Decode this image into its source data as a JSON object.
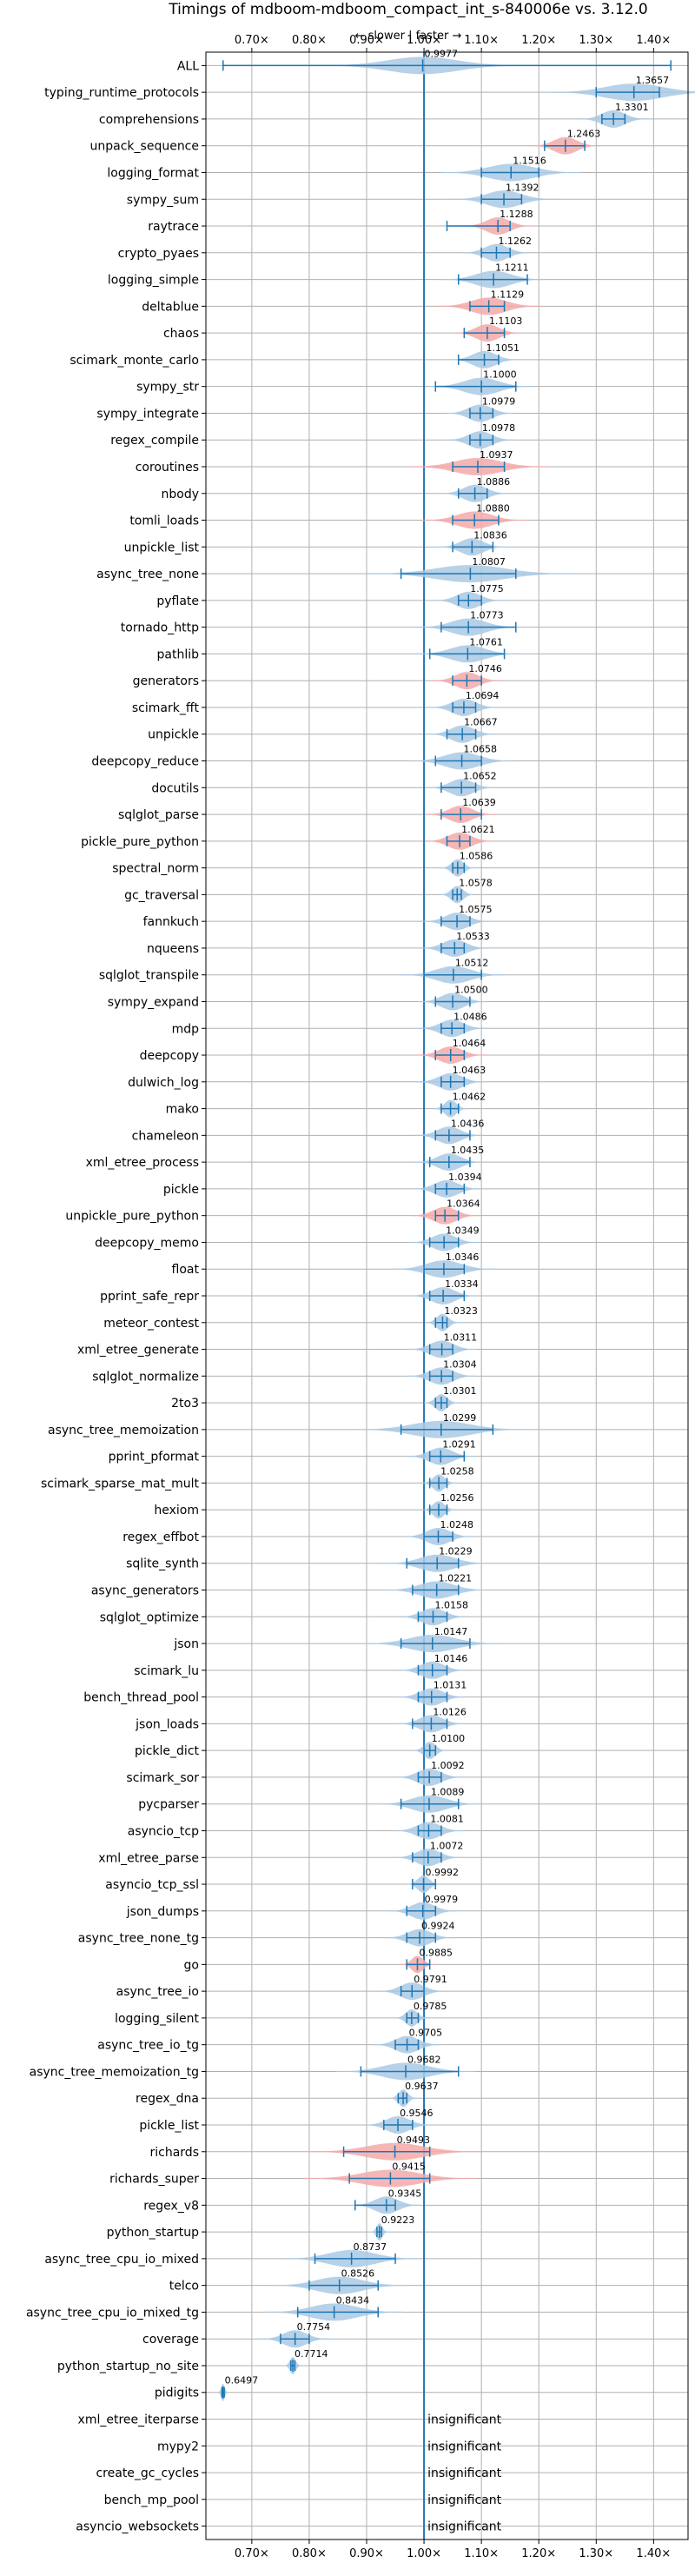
{
  "chart_data": {
    "type": "violin",
    "title": "Timings of mdboom-mdboom_compact_int_s-840006e vs. 3.12.0",
    "subtitle": "← slower | faster →",
    "insignificant_label": "insignificant",
    "reference_line": 1.0,
    "xlim": [
      0.62,
      1.46
    ],
    "xticks": [
      0.7,
      0.8,
      0.9,
      1.0,
      1.1,
      1.2,
      1.3,
      1.4
    ],
    "xtick_labels": [
      "0.70×",
      "0.80×",
      "0.90×",
      "1.00×",
      "1.10×",
      "1.20×",
      "1.30×",
      "1.40×"
    ],
    "grid": true,
    "colors": {
      "faster": "#a9c9e4",
      "slower": "#f5a9a9",
      "line": "#1f77b4",
      "text": "#000000"
    },
    "categories": [
      {
        "name": "ALL",
        "value": 0.9977,
        "label": "0.9977",
        "min": 0.65,
        "max": 1.43,
        "spread": 0.06,
        "color": "blue"
      },
      {
        "name": "typing_runtime_protocols",
        "value": 1.3657,
        "label": "1.3657",
        "min": 1.3,
        "max": 1.41,
        "spread": 0.05,
        "color": "blue"
      },
      {
        "name": "comprehensions",
        "value": 1.3301,
        "label": "1.3301",
        "min": 1.31,
        "max": 1.35,
        "spread": 0.02,
        "color": "blue"
      },
      {
        "name": "unpack_sequence",
        "value": 1.2463,
        "label": "1.2463",
        "min": 1.21,
        "max": 1.28,
        "spread": 0.02,
        "color": "red"
      },
      {
        "name": "logging_format",
        "value": 1.1516,
        "label": "1.1516",
        "min": 1.1,
        "max": 1.2,
        "spread": 0.04,
        "color": "blue"
      },
      {
        "name": "sympy_sum",
        "value": 1.1392,
        "label": "1.1392",
        "min": 1.1,
        "max": 1.17,
        "spread": 0.03,
        "color": "blue"
      },
      {
        "name": "raytrace",
        "value": 1.1288,
        "label": "1.1288",
        "min": 1.04,
        "max": 1.15,
        "spread": 0.02,
        "color": "red"
      },
      {
        "name": "crypto_pyaes",
        "value": 1.1262,
        "label": "1.1262",
        "min": 1.1,
        "max": 1.15,
        "spread": 0.02,
        "color": "blue"
      },
      {
        "name": "logging_simple",
        "value": 1.1211,
        "label": "1.1211",
        "min": 1.06,
        "max": 1.18,
        "spread": 0.03,
        "color": "blue"
      },
      {
        "name": "deltablue",
        "value": 1.1129,
        "label": "1.1129",
        "min": 1.08,
        "max": 1.14,
        "spread": 0.03,
        "color": "red"
      },
      {
        "name": "chaos",
        "value": 1.1103,
        "label": "1.1103",
        "min": 1.07,
        "max": 1.14,
        "spread": 0.02,
        "color": "red"
      },
      {
        "name": "scimark_monte_carlo",
        "value": 1.1051,
        "label": "1.1051",
        "min": 1.06,
        "max": 1.13,
        "spread": 0.02,
        "color": "blue"
      },
      {
        "name": "sympy_str",
        "value": 1.1,
        "label": "1.1000",
        "min": 1.02,
        "max": 1.16,
        "spread": 0.03,
        "color": "blue"
      },
      {
        "name": "sympy_integrate",
        "value": 1.0979,
        "label": "1.0979",
        "min": 1.08,
        "max": 1.12,
        "spread": 0.02,
        "color": "blue"
      },
      {
        "name": "regex_compile",
        "value": 1.0978,
        "label": "1.0978",
        "min": 1.08,
        "max": 1.12,
        "spread": 0.02,
        "color": "blue"
      },
      {
        "name": "coroutines",
        "value": 1.0937,
        "label": "1.0937",
        "min": 1.05,
        "max": 1.14,
        "spread": 0.04,
        "color": "red"
      },
      {
        "name": "nbody",
        "value": 1.0886,
        "label": "1.0886",
        "min": 1.06,
        "max": 1.11,
        "spread": 0.02,
        "color": "blue"
      },
      {
        "name": "tomli_loads",
        "value": 1.088,
        "label": "1.0880",
        "min": 1.05,
        "max": 1.13,
        "spread": 0.03,
        "color": "red"
      },
      {
        "name": "unpickle_list",
        "value": 1.0836,
        "label": "1.0836",
        "min": 1.05,
        "max": 1.12,
        "spread": 0.02,
        "color": "blue"
      },
      {
        "name": "async_tree_none",
        "value": 1.0807,
        "label": "1.0807",
        "min": 0.96,
        "max": 1.16,
        "spread": 0.06,
        "color": "blue"
      },
      {
        "name": "pyflate",
        "value": 1.0775,
        "label": "1.0775",
        "min": 1.06,
        "max": 1.1,
        "spread": 0.02,
        "color": "blue"
      },
      {
        "name": "tornado_http",
        "value": 1.0773,
        "label": "1.0773",
        "min": 1.03,
        "max": 1.16,
        "spread": 0.03,
        "color": "blue"
      },
      {
        "name": "pathlib",
        "value": 1.0761,
        "label": "1.0761",
        "min": 1.01,
        "max": 1.14,
        "spread": 0.03,
        "color": "blue"
      },
      {
        "name": "generators",
        "value": 1.0746,
        "label": "1.0746",
        "min": 1.05,
        "max": 1.1,
        "spread": 0.02,
        "color": "red"
      },
      {
        "name": "scimark_fft",
        "value": 1.0694,
        "label": "1.0694",
        "min": 1.05,
        "max": 1.09,
        "spread": 0.02,
        "color": "blue"
      },
      {
        "name": "unpickle",
        "value": 1.0667,
        "label": "1.0667",
        "min": 1.04,
        "max": 1.09,
        "spread": 0.02,
        "color": "blue"
      },
      {
        "name": "deepcopy_reduce",
        "value": 1.0658,
        "label": "1.0658",
        "min": 1.02,
        "max": 1.1,
        "spread": 0.03,
        "color": "blue"
      },
      {
        "name": "docutils",
        "value": 1.0652,
        "label": "1.0652",
        "min": 1.03,
        "max": 1.09,
        "spread": 0.02,
        "color": "blue"
      },
      {
        "name": "sqlglot_parse",
        "value": 1.0639,
        "label": "1.0639",
        "min": 1.03,
        "max": 1.1,
        "spread": 0.02,
        "color": "red"
      },
      {
        "name": "pickle_pure_python",
        "value": 1.0621,
        "label": "1.0621",
        "min": 1.04,
        "max": 1.08,
        "spread": 0.02,
        "color": "red"
      },
      {
        "name": "spectral_norm",
        "value": 1.0586,
        "label": "1.0586",
        "min": 1.05,
        "max": 1.07,
        "spread": 0.01,
        "color": "blue"
      },
      {
        "name": "gc_traversal",
        "value": 1.0578,
        "label": "1.0578",
        "min": 1.05,
        "max": 1.065,
        "spread": 0.01,
        "color": "blue"
      },
      {
        "name": "fannkuch",
        "value": 1.0575,
        "label": "1.0575",
        "min": 1.03,
        "max": 1.08,
        "spread": 0.02,
        "color": "blue"
      },
      {
        "name": "nqueens",
        "value": 1.0533,
        "label": "1.0533",
        "min": 1.03,
        "max": 1.07,
        "spread": 0.02,
        "color": "blue"
      },
      {
        "name": "sqlglot_transpile",
        "value": 1.0512,
        "label": "1.0512",
        "min": 1.0,
        "max": 1.1,
        "spread": 0.03,
        "color": "blue"
      },
      {
        "name": "sympy_expand",
        "value": 1.05,
        "label": "1.0500",
        "min": 1.02,
        "max": 1.08,
        "spread": 0.02,
        "color": "blue"
      },
      {
        "name": "mdp",
        "value": 1.0486,
        "label": "1.0486",
        "min": 1.03,
        "max": 1.07,
        "spread": 0.02,
        "color": "blue"
      },
      {
        "name": "deepcopy",
        "value": 1.0464,
        "label": "1.0464",
        "min": 1.02,
        "max": 1.07,
        "spread": 0.02,
        "color": "red"
      },
      {
        "name": "dulwich_log",
        "value": 1.0463,
        "label": "1.0463",
        "min": 1.03,
        "max": 1.07,
        "spread": 0.02,
        "color": "blue"
      },
      {
        "name": "mako",
        "value": 1.0462,
        "label": "1.0462",
        "min": 1.03,
        "max": 1.06,
        "spread": 0.01,
        "color": "blue"
      },
      {
        "name": "chameleon",
        "value": 1.0436,
        "label": "1.0436",
        "min": 1.02,
        "max": 1.08,
        "spread": 0.02,
        "color": "blue"
      },
      {
        "name": "xml_etree_process",
        "value": 1.0435,
        "label": "1.0435",
        "min": 1.01,
        "max": 1.08,
        "spread": 0.02,
        "color": "blue"
      },
      {
        "name": "pickle",
        "value": 1.0394,
        "label": "1.0394",
        "min": 1.02,
        "max": 1.07,
        "spread": 0.02,
        "color": "blue"
      },
      {
        "name": "unpickle_pure_python",
        "value": 1.0364,
        "label": "1.0364",
        "min": 1.02,
        "max": 1.06,
        "spread": 0.02,
        "color": "red"
      },
      {
        "name": "deepcopy_memo",
        "value": 1.0349,
        "label": "1.0349",
        "min": 1.01,
        "max": 1.06,
        "spread": 0.02,
        "color": "blue"
      },
      {
        "name": "float",
        "value": 1.0346,
        "label": "1.0346",
        "min": 1.0,
        "max": 1.07,
        "spread": 0.03,
        "color": "blue"
      },
      {
        "name": "pprint_safe_repr",
        "value": 1.0334,
        "label": "1.0334",
        "min": 1.01,
        "max": 1.07,
        "spread": 0.02,
        "color": "blue"
      },
      {
        "name": "meteor_contest",
        "value": 1.0323,
        "label": "1.0323",
        "min": 1.02,
        "max": 1.04,
        "spread": 0.01,
        "color": "blue"
      },
      {
        "name": "xml_etree_generate",
        "value": 1.0311,
        "label": "1.0311",
        "min": 1.01,
        "max": 1.05,
        "spread": 0.02,
        "color": "blue"
      },
      {
        "name": "sqlglot_normalize",
        "value": 1.0304,
        "label": "1.0304",
        "min": 1.01,
        "max": 1.05,
        "spread": 0.02,
        "color": "blue"
      },
      {
        "name": "2to3",
        "value": 1.0301,
        "label": "1.0301",
        "min": 1.02,
        "max": 1.04,
        "spread": 0.01,
        "color": "blue"
      },
      {
        "name": "async_tree_memoization",
        "value": 1.0299,
        "label": "1.0299",
        "min": 0.96,
        "max": 1.12,
        "spread": 0.05,
        "color": "blue"
      },
      {
        "name": "pprint_pformat",
        "value": 1.0291,
        "label": "1.0291",
        "min": 1.01,
        "max": 1.07,
        "spread": 0.02,
        "color": "blue"
      },
      {
        "name": "scimark_sparse_mat_mult",
        "value": 1.0258,
        "label": "1.0258",
        "min": 1.01,
        "max": 1.04,
        "spread": 0.01,
        "color": "blue"
      },
      {
        "name": "hexiom",
        "value": 1.0256,
        "label": "1.0256",
        "min": 1.01,
        "max": 1.04,
        "spread": 0.01,
        "color": "blue"
      },
      {
        "name": "regex_effbot",
        "value": 1.0248,
        "label": "1.0248",
        "min": 1.0,
        "max": 1.05,
        "spread": 0.02,
        "color": "blue"
      },
      {
        "name": "sqlite_synth",
        "value": 1.0229,
        "label": "1.0229",
        "min": 0.97,
        "max": 1.06,
        "spread": 0.03,
        "color": "blue"
      },
      {
        "name": "async_generators",
        "value": 1.0221,
        "label": "1.0221",
        "min": 0.98,
        "max": 1.06,
        "spread": 0.03,
        "color": "blue"
      },
      {
        "name": "sqlglot_optimize",
        "value": 1.0158,
        "label": "1.0158",
        "min": 0.99,
        "max": 1.04,
        "spread": 0.02,
        "color": "blue"
      },
      {
        "name": "json",
        "value": 1.0147,
        "label": "1.0147",
        "min": 0.96,
        "max": 1.08,
        "spread": 0.04,
        "color": "blue"
      },
      {
        "name": "scimark_lu",
        "value": 1.0146,
        "label": "1.0146",
        "min": 0.99,
        "max": 1.04,
        "spread": 0.02,
        "color": "blue"
      },
      {
        "name": "bench_thread_pool",
        "value": 1.0131,
        "label": "1.0131",
        "min": 0.99,
        "max": 1.04,
        "spread": 0.02,
        "color": "blue"
      },
      {
        "name": "json_loads",
        "value": 1.0126,
        "label": "1.0126",
        "min": 0.98,
        "max": 1.04,
        "spread": 0.02,
        "color": "blue"
      },
      {
        "name": "pickle_dict",
        "value": 1.01,
        "label": "1.0100",
        "min": 1.0,
        "max": 1.02,
        "spread": 0.01,
        "color": "blue"
      },
      {
        "name": "scimark_sor",
        "value": 1.0092,
        "label": "1.0092",
        "min": 0.99,
        "max": 1.03,
        "spread": 0.02,
        "color": "blue"
      },
      {
        "name": "pycparser",
        "value": 1.0089,
        "label": "1.0089",
        "min": 0.96,
        "max": 1.06,
        "spread": 0.03,
        "color": "blue"
      },
      {
        "name": "asyncio_tcp",
        "value": 1.0081,
        "label": "1.0081",
        "min": 0.99,
        "max": 1.03,
        "spread": 0.02,
        "color": "blue"
      },
      {
        "name": "xml_etree_parse",
        "value": 1.0072,
        "label": "1.0072",
        "min": 0.98,
        "max": 1.03,
        "spread": 0.02,
        "color": "blue"
      },
      {
        "name": "asyncio_tcp_ssl",
        "value": 0.9992,
        "label": "0.9992",
        "min": 0.98,
        "max": 1.02,
        "spread": 0.01,
        "color": "blue"
      },
      {
        "name": "json_dumps",
        "value": 0.9979,
        "label": "0.9979",
        "min": 0.97,
        "max": 1.02,
        "spread": 0.02,
        "color": "blue"
      },
      {
        "name": "async_tree_none_tg",
        "value": 0.9924,
        "label": "0.9924",
        "min": 0.97,
        "max": 1.02,
        "spread": 0.02,
        "color": "blue"
      },
      {
        "name": "go",
        "value": 0.9885,
        "label": "0.9885",
        "min": 0.97,
        "max": 1.01,
        "spread": 0.01,
        "color": "red"
      },
      {
        "name": "async_tree_io",
        "value": 0.9791,
        "label": "0.9791",
        "min": 0.96,
        "max": 1.0,
        "spread": 0.02,
        "color": "blue"
      },
      {
        "name": "logging_silent",
        "value": 0.9785,
        "label": "0.9785",
        "min": 0.97,
        "max": 0.99,
        "spread": 0.01,
        "color": "blue"
      },
      {
        "name": "async_tree_io_tg",
        "value": 0.9705,
        "label": "0.9705",
        "min": 0.95,
        "max": 0.99,
        "spread": 0.02,
        "color": "blue"
      },
      {
        "name": "async_tree_memoization_tg",
        "value": 0.9682,
        "label": "0.9682",
        "min": 0.89,
        "max": 1.06,
        "spread": 0.04,
        "color": "blue"
      },
      {
        "name": "regex_dna",
        "value": 0.9637,
        "label": "0.9637",
        "min": 0.955,
        "max": 0.97,
        "spread": 0.008,
        "color": "blue"
      },
      {
        "name": "pickle_list",
        "value": 0.9546,
        "label": "0.9546",
        "min": 0.93,
        "max": 0.98,
        "spread": 0.02,
        "color": "blue"
      },
      {
        "name": "richards",
        "value": 0.9493,
        "label": "0.9493",
        "min": 0.86,
        "max": 1.01,
        "spread": 0.05,
        "color": "red"
      },
      {
        "name": "richards_super",
        "value": 0.9415,
        "label": "0.9415",
        "min": 0.87,
        "max": 1.01,
        "spread": 0.05,
        "color": "red"
      },
      {
        "name": "regex_v8",
        "value": 0.9345,
        "label": "0.9345",
        "min": 0.88,
        "max": 0.95,
        "spread": 0.02,
        "color": "blue"
      },
      {
        "name": "python_startup",
        "value": 0.9223,
        "label": "0.9223",
        "min": 0.918,
        "max": 0.926,
        "spread": 0.005,
        "color": "blue"
      },
      {
        "name": "async_tree_cpu_io_mixed",
        "value": 0.8737,
        "label": "0.8737",
        "min": 0.81,
        "max": 0.95,
        "spread": 0.04,
        "color": "blue"
      },
      {
        "name": "telco",
        "value": 0.8526,
        "label": "0.8526",
        "min": 0.8,
        "max": 0.92,
        "spread": 0.04,
        "color": "blue"
      },
      {
        "name": "async_tree_cpu_io_mixed_tg",
        "value": 0.8434,
        "label": "0.8434",
        "min": 0.78,
        "max": 0.92,
        "spread": 0.04,
        "color": "blue"
      },
      {
        "name": "coverage",
        "value": 0.7754,
        "label": "0.7754",
        "min": 0.75,
        "max": 0.8,
        "spread": 0.02,
        "color": "blue"
      },
      {
        "name": "python_startup_no_site",
        "value": 0.7714,
        "label": "0.7714",
        "min": 0.768,
        "max": 0.775,
        "spread": 0.005,
        "color": "blue"
      },
      {
        "name": "pidigits",
        "value": 0.6497,
        "label": "0.6497",
        "min": 0.648,
        "max": 0.652,
        "spread": 0.003,
        "color": "blue"
      },
      {
        "name": "xml_etree_iterparse",
        "value": null,
        "label": "insignificant"
      },
      {
        "name": "mypy2",
        "value": null,
        "label": "insignificant"
      },
      {
        "name": "create_gc_cycles",
        "value": null,
        "label": "insignificant"
      },
      {
        "name": "bench_mp_pool",
        "value": null,
        "label": "insignificant"
      },
      {
        "name": "asyncio_websockets",
        "value": null,
        "label": "insignificant"
      }
    ]
  }
}
